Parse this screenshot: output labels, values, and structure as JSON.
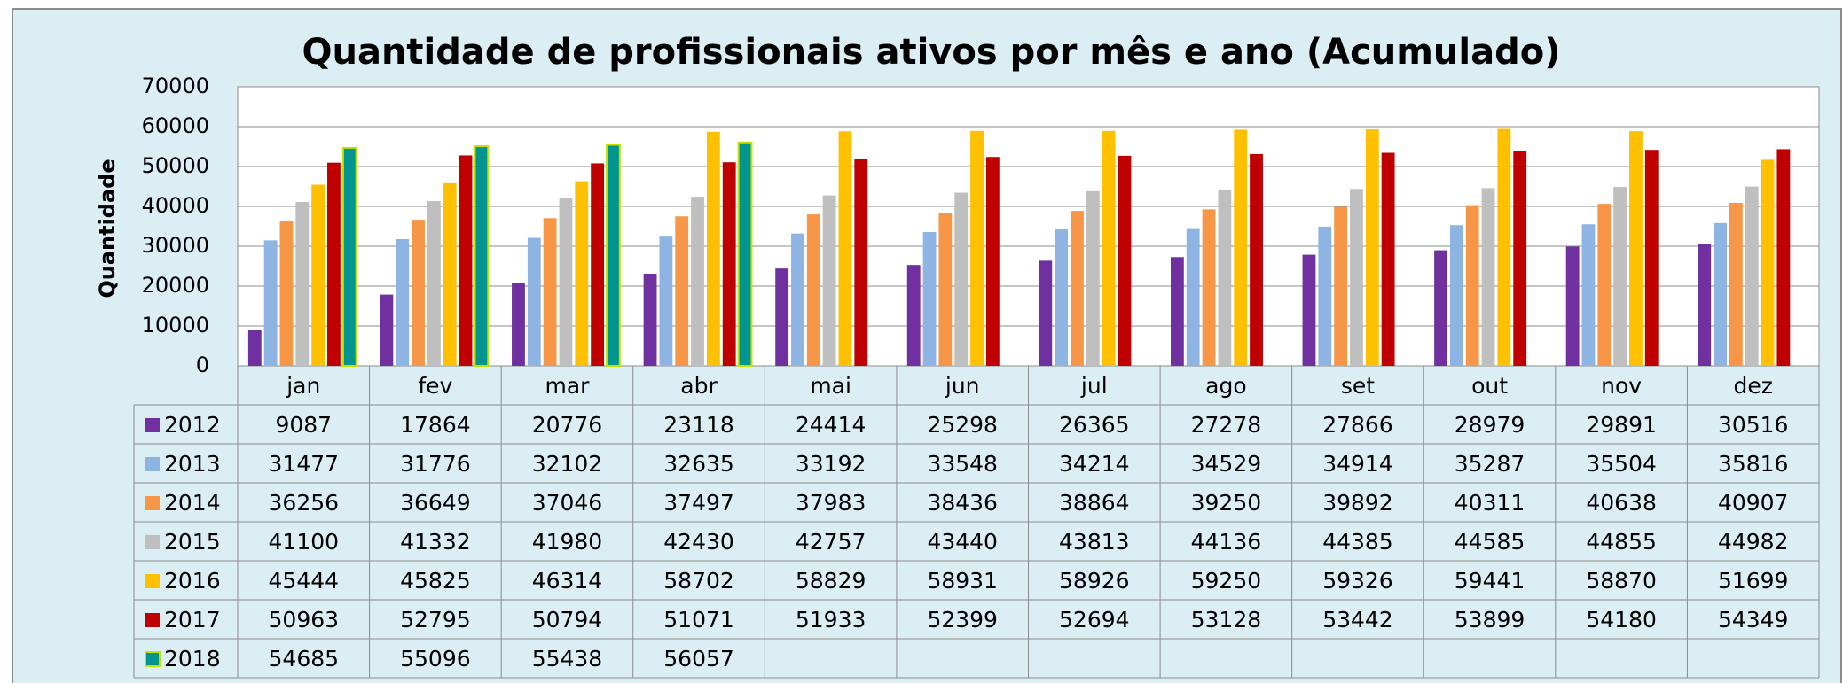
{
  "chart_data": {
    "type": "bar",
    "title": "Quantidade de profissionais ativos por mês e ano (Acumulado)",
    "y_label": "Quantidade",
    "categories": [
      "jan",
      "fev",
      "mar",
      "abr",
      "mai",
      "jun",
      "jul",
      "ago",
      "set",
      "out",
      "nov",
      "dez"
    ],
    "series": [
      {
        "name": "2012",
        "color": "#7030a0",
        "values": [
          9087,
          17864,
          20776,
          23118,
          24414,
          25298,
          26365,
          27278,
          27866,
          28979,
          29891,
          30516
        ]
      },
      {
        "name": "2013",
        "color": "#8eb4e3",
        "values": [
          31477,
          31776,
          32102,
          32635,
          33192,
          33548,
          34214,
          34529,
          34914,
          35287,
          35504,
          35816
        ]
      },
      {
        "name": "2014",
        "color": "#f79646",
        "values": [
          36256,
          36649,
          37046,
          37497,
          37983,
          38436,
          38864,
          39250,
          39892,
          40311,
          40638,
          40907
        ]
      },
      {
        "name": "2015",
        "color": "#bfbfbf",
        "values": [
          41100,
          41332,
          41980,
          42430,
          42757,
          43440,
          43813,
          44136,
          44385,
          44585,
          44855,
          44982
        ]
      },
      {
        "name": "2016",
        "color": "#ffc000",
        "values": [
          45444,
          45825,
          46314,
          58702,
          58829,
          58931,
          58926,
          59250,
          59326,
          59441,
          58870,
          51699
        ]
      },
      {
        "name": "2017",
        "color": "#c00000",
        "values": [
          50963,
          52795,
          50794,
          51071,
          51933,
          52399,
          52694,
          53128,
          53442,
          53899,
          54180,
          54349
        ]
      },
      {
        "name": "2018",
        "color": "#00968f",
        "values": [
          54685,
          55096,
          55438,
          56057,
          null,
          null,
          null,
          null,
          null,
          null,
          null,
          null
        ]
      }
    ],
    "ylim": [
      0,
      70000
    ],
    "yticks": [
      0,
      10000,
      20000,
      30000,
      40000,
      50000,
      60000,
      70000
    ],
    "grid": true
  }
}
